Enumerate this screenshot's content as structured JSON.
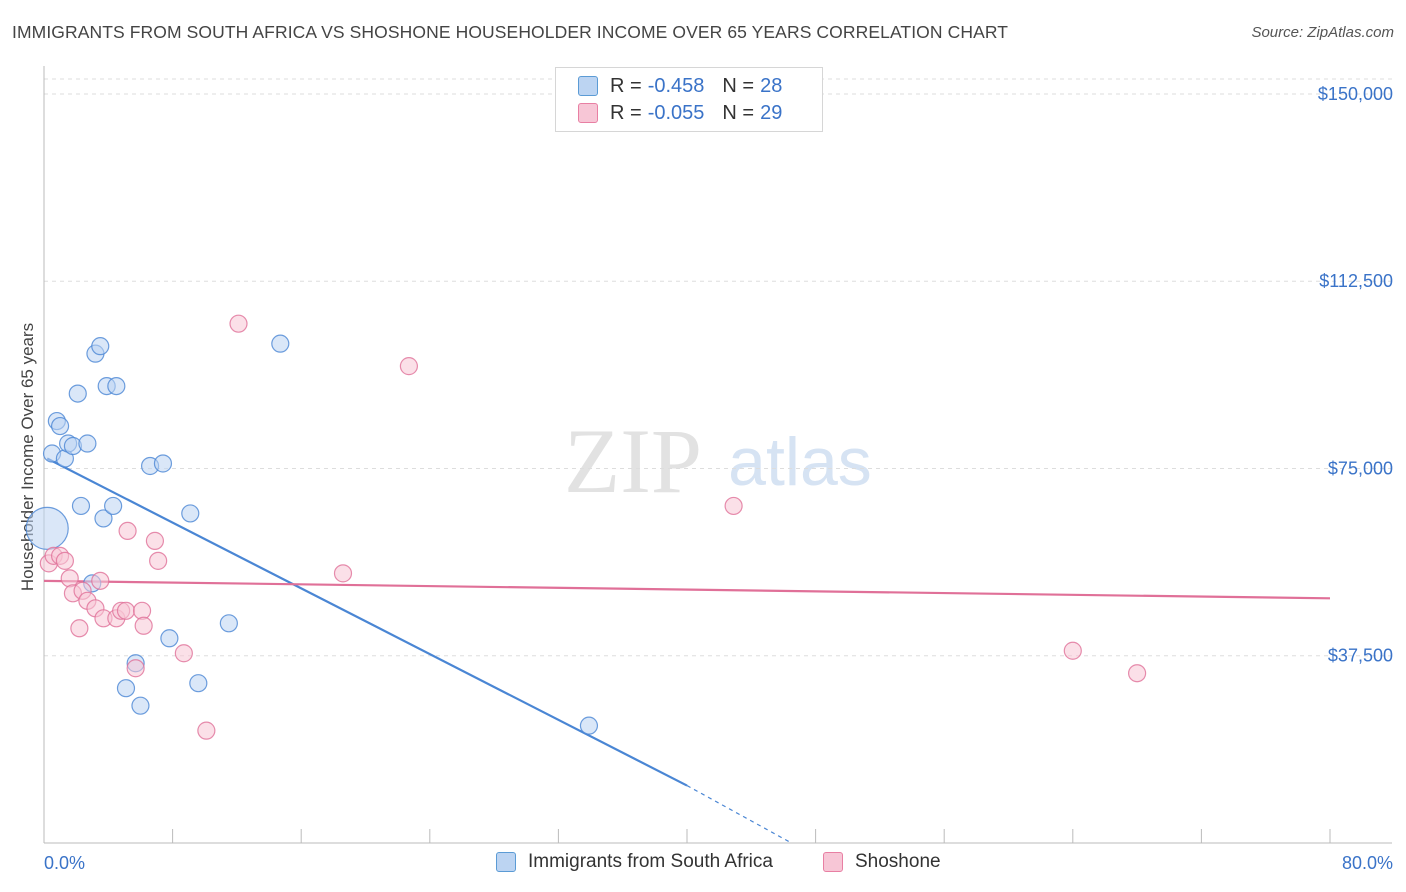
{
  "title": "IMMIGRANTS FROM SOUTH AFRICA VS SHOSHONE HOUSEHOLDER INCOME OVER 65 YEARS CORRELATION CHART",
  "source": "Source: ZipAtlas.com",
  "watermark": {
    "zip": "ZIP",
    "atlas": "atlas"
  },
  "legend_top": [
    {
      "label": "R = ",
      "r": "-0.458",
      "n_label": "N = ",
      "n": "28",
      "color": "#5b9bd5",
      "fill": "#bcd4f2"
    },
    {
      "label": "R = ",
      "r": "-0.055",
      "n_label": "N = ",
      "n": "29",
      "color": "#e87fa3",
      "fill": "#f7c6d6"
    }
  ],
  "legend_bottom": [
    {
      "label": "Immigrants from South Africa",
      "fill": "#bcd4f2",
      "border": "#5b9bd5"
    },
    {
      "label": "Shoshone",
      "fill": "#f7c6d6",
      "border": "#e87fa3"
    }
  ],
  "chart_data": {
    "type": "scatter",
    "title": "IMMIGRANTS FROM SOUTH AFRICA VS SHOSHONE HOUSEHOLDER INCOME OVER 65 YEARS CORRELATION CHART",
    "xlabel": "",
    "ylabel": "Householder Income Over 65 years",
    "xlim": [
      0,
      80
    ],
    "ylim": [
      0,
      153000
    ],
    "x_tick_labels": [
      "0.0%",
      "80.0%"
    ],
    "y_ticks": [
      37500,
      75000,
      112500,
      150000
    ],
    "y_tick_labels": [
      "$37,500",
      "$75,000",
      "$112,500",
      "$150,000"
    ],
    "grid": true,
    "series": [
      {
        "name": "Immigrants from South Africa",
        "color": "#4a86d4",
        "fill": "#bcd4f2",
        "points": [
          {
            "x": 0.2,
            "y": 63000,
            "size": "large"
          },
          {
            "x": 0.5,
            "y": 78000
          },
          {
            "x": 0.8,
            "y": 84500
          },
          {
            "x": 1.0,
            "y": 83500
          },
          {
            "x": 1.3,
            "y": 77000
          },
          {
            "x": 1.5,
            "y": 80000
          },
          {
            "x": 1.8,
            "y": 79500
          },
          {
            "x": 2.1,
            "y": 90000
          },
          {
            "x": 2.3,
            "y": 67500
          },
          {
            "x": 2.7,
            "y": 80000
          },
          {
            "x": 3.2,
            "y": 98000
          },
          {
            "x": 3.5,
            "y": 99500
          },
          {
            "x": 3.9,
            "y": 91500
          },
          {
            "x": 4.5,
            "y": 91500
          },
          {
            "x": 3.7,
            "y": 65000
          },
          {
            "x": 4.3,
            "y": 67500
          },
          {
            "x": 3.0,
            "y": 52000
          },
          {
            "x": 6.6,
            "y": 75500
          },
          {
            "x": 7.4,
            "y": 76000
          },
          {
            "x": 9.1,
            "y": 66000
          },
          {
            "x": 11.5,
            "y": 44000
          },
          {
            "x": 7.8,
            "y": 41000
          },
          {
            "x": 5.7,
            "y": 36000
          },
          {
            "x": 5.1,
            "y": 31000
          },
          {
            "x": 6.0,
            "y": 27500
          },
          {
            "x": 9.6,
            "y": 32000
          },
          {
            "x": 14.7,
            "y": 100000
          },
          {
            "x": 33.9,
            "y": 23500
          }
        ],
        "trend": {
          "x_start": 0.2,
          "y_start": 77000,
          "x_end_solid": 40.0,
          "y_end_solid": 11500,
          "x_end_dashed": 46.5,
          "y_end_dashed": 0
        }
      },
      {
        "name": "Shoshone",
        "color": "#e07098",
        "fill": "#f7c6d6",
        "points": [
          {
            "x": 0.3,
            "y": 56000
          },
          {
            "x": 0.6,
            "y": 57500
          },
          {
            "x": 1.0,
            "y": 57500
          },
          {
            "x": 1.3,
            "y": 56500
          },
          {
            "x": 1.6,
            "y": 53000
          },
          {
            "x": 1.8,
            "y": 50000
          },
          {
            "x": 2.2,
            "y": 43000
          },
          {
            "x": 2.4,
            "y": 50500
          },
          {
            "x": 2.7,
            "y": 48500
          },
          {
            "x": 3.2,
            "y": 47000
          },
          {
            "x": 3.5,
            "y": 52500
          },
          {
            "x": 3.7,
            "y": 45000
          },
          {
            "x": 4.5,
            "y": 45000
          },
          {
            "x": 4.8,
            "y": 46500
          },
          {
            "x": 5.1,
            "y": 46500
          },
          {
            "x": 6.1,
            "y": 46500
          },
          {
            "x": 6.2,
            "y": 43500
          },
          {
            "x": 6.9,
            "y": 60500
          },
          {
            "x": 7.1,
            "y": 56500
          },
          {
            "x": 5.2,
            "y": 62500
          },
          {
            "x": 5.7,
            "y": 35000
          },
          {
            "x": 8.7,
            "y": 38000
          },
          {
            "x": 10.1,
            "y": 22500
          },
          {
            "x": 12.1,
            "y": 104000
          },
          {
            "x": 18.6,
            "y": 54000
          },
          {
            "x": 22.7,
            "y": 95500
          },
          {
            "x": 42.9,
            "y": 67500
          },
          {
            "x": 64.0,
            "y": 38500
          },
          {
            "x": 68.0,
            "y": 34000
          }
        ],
        "trend": {
          "x_start": 0,
          "y_start": 52500,
          "x_end_solid": 80,
          "y_end_solid": 49000
        }
      }
    ]
  }
}
